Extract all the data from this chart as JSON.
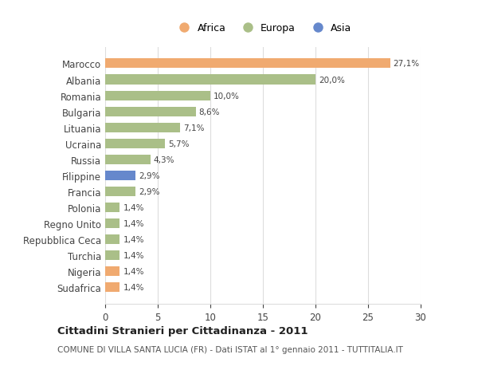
{
  "categories": [
    "Sudafrica",
    "Nigeria",
    "Turchia",
    "Repubblica Ceca",
    "Regno Unito",
    "Polonia",
    "Francia",
    "Filippine",
    "Russia",
    "Ucraina",
    "Lituania",
    "Bulgaria",
    "Romania",
    "Albania",
    "Marocco"
  ],
  "values": [
    1.4,
    1.4,
    1.4,
    1.4,
    1.4,
    1.4,
    2.9,
    2.9,
    4.3,
    5.7,
    7.1,
    8.6,
    10.0,
    20.0,
    27.1
  ],
  "colors": [
    "#f0aa70",
    "#f0aa70",
    "#aabf88",
    "#aabf88",
    "#aabf88",
    "#aabf88",
    "#aabf88",
    "#6688cc",
    "#aabf88",
    "#aabf88",
    "#aabf88",
    "#aabf88",
    "#aabf88",
    "#aabf88",
    "#f0aa70"
  ],
  "labels": [
    "1,4%",
    "1,4%",
    "1,4%",
    "1,4%",
    "1,4%",
    "1,4%",
    "2,9%",
    "2,9%",
    "4,3%",
    "5,7%",
    "7,1%",
    "8,6%",
    "10,0%",
    "20,0%",
    "27,1%"
  ],
  "legend_labels": [
    "Africa",
    "Europa",
    "Asia"
  ],
  "legend_colors": [
    "#f0aa70",
    "#aabf88",
    "#6688cc"
  ],
  "title": "Cittadini Stranieri per Cittadinanza - 2011",
  "subtitle": "COMUNE DI VILLA SANTA LUCIA (FR) - Dati ISTAT al 1° gennaio 2011 - TUTTITALIA.IT",
  "xlim": [
    0,
    30
  ],
  "xticks": [
    0,
    5,
    10,
    15,
    20,
    25,
    30
  ],
  "background_color": "#ffffff",
  "bar_height": 0.6,
  "grid_color": "#dddddd"
}
